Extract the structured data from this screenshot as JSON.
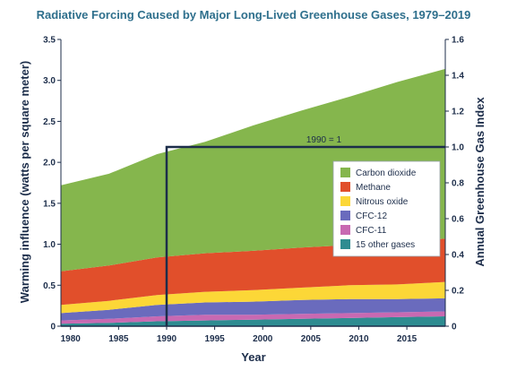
{
  "chart_data": {
    "type": "area",
    "stacked": true,
    "title": "Radiative Forcing Caused by Major Long-Lived Greenhouse Gases, 1979–2019",
    "xlabel": "Year",
    "ylabel": "Warming influence (watts per square meter)",
    "y2label": "Annual Greenhouse Gas Index",
    "xlim": [
      1979,
      2019
    ],
    "ylim": [
      0,
      3.5
    ],
    "y2lim": [
      0,
      1.6
    ],
    "x_ticks": [
      "1980",
      "1985",
      "1990",
      "1995",
      "2000",
      "2005",
      "2010",
      "2015"
    ],
    "y_ticks": [
      "0",
      "0.5",
      "1.0",
      "1.5",
      "2.0",
      "2.5",
      "3.0",
      "3.5"
    ],
    "y2_ticks": [
      "0",
      "0.2",
      "0.4",
      "0.6",
      "0.8",
      "1.0",
      "1.2",
      "1.4",
      "1.6"
    ],
    "legend_position": "right",
    "annotation": {
      "label": "1990 = 1",
      "x": 1990,
      "y2": 1.0
    },
    "x": [
      1979,
      1984,
      1989,
      1994,
      1999,
      2004,
      2009,
      2014,
      2019
    ],
    "series": [
      {
        "name": "15 other gases",
        "color": "#2e8c91",
        "values": [
          0.03,
          0.04,
          0.06,
          0.07,
          0.08,
          0.09,
          0.1,
          0.11,
          0.12
        ]
      },
      {
        "name": "CFC-11",
        "color": "#c869b2",
        "values": [
          0.04,
          0.05,
          0.06,
          0.07,
          0.06,
          0.06,
          0.06,
          0.06,
          0.06
        ]
      },
      {
        "name": "CFC-12",
        "color": "#6a6bbd",
        "values": [
          0.09,
          0.11,
          0.14,
          0.15,
          0.16,
          0.17,
          0.17,
          0.16,
          0.16
        ]
      },
      {
        "name": "Nitrous oxide",
        "color": "#fcd737",
        "values": [
          0.1,
          0.11,
          0.12,
          0.13,
          0.14,
          0.15,
          0.17,
          0.18,
          0.2
        ]
      },
      {
        "name": "Methane",
        "color": "#e14f2b",
        "values": [
          0.41,
          0.43,
          0.46,
          0.47,
          0.48,
          0.49,
          0.49,
          0.51,
          0.53
        ]
      },
      {
        "name": "Carbon dioxide",
        "color": "#85b64d",
        "values": [
          1.05,
          1.12,
          1.26,
          1.36,
          1.53,
          1.67,
          1.81,
          1.96,
          2.07
        ]
      }
    ],
    "legend_order": [
      "Carbon dioxide",
      "Methane",
      "Nitrous oxide",
      "CFC-12",
      "CFC-11",
      "15 other gases"
    ],
    "colors": {
      "axis": "#1c2d4a",
      "title": "#2e6f8c"
    }
  }
}
